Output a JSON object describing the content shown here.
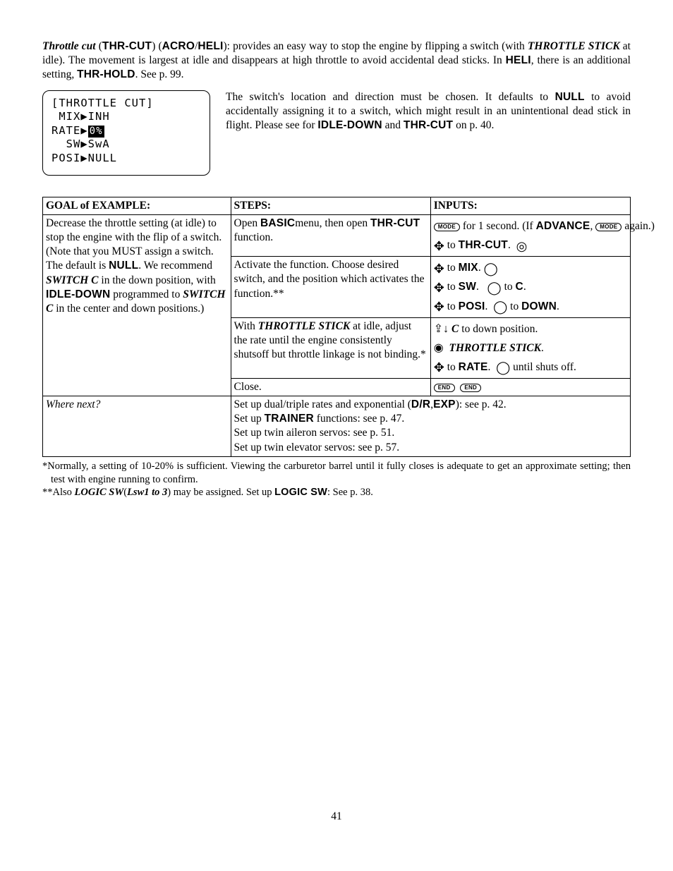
{
  "intro": {
    "t1": "Throttle cut",
    "t2": " (",
    "t3": "THR-CUT",
    "t4": ") (",
    "t5": "ACRO",
    "t6": "/",
    "t7": "HELI",
    "t8": "): provides an easy way to stop the engine by flipping a switch (with ",
    "t9": "THROTTLE STICK",
    "t10": " at idle). The movement is largest at idle and disappears at high throttle to avoid accidental dead sticks. In ",
    "t11": "HELI",
    "t12": ", there is an additional setting, ",
    "t13": "THR-HOLD",
    "t14": ". See p. 99."
  },
  "lcd": {
    "l1": "[THROTTLE CUT]",
    "l2": " MIX▶INH",
    "l3a": "RATE▶",
    "l3b": "0%",
    "l4": "  SW▶SwA",
    "l5": "POSI▶NULL"
  },
  "note": {
    "n1": "The switch's location and direction must be chosen. It defaults to ",
    "n2": "NULL",
    "n3": " to avoid accidentally assigning it to a switch, which might result in an unintentional dead stick in flight. Please see for ",
    "n4": "IDLE-DOWN",
    "n5": " and ",
    "n6": "THR-CUT",
    "n7": " on p. 40."
  },
  "headers": {
    "goal": "GOAL of EXAMPLE:",
    "steps": "STEPS:",
    "inputs": "INPUTS:"
  },
  "goal": {
    "g1": "Decrease the throttle setting (at idle) to stop the engine with the flip of a switch.(Note that you MUST assign a switch. The default is ",
    "g2": "NULL",
    "g3": ". We recommend ",
    "g4": "SWITCH C",
    "g5": " in the down position, with ",
    "g6": "IDLE-DOWN",
    "g7": " programmed to ",
    "g8": "SWITCH C",
    "g9": " in the center and down positions.)"
  },
  "steps": {
    "s1a": "Open ",
    "s1b": "BASIC",
    "s1c": "menu, then open ",
    "s1d": "THR-CUT",
    "s1e": " function.",
    "s2": "Activate the function. Choose desired switch, and the position which activates the function.**",
    "s3a": "With ",
    "s3b": "THROTTLE STICK",
    "s3c": " at idle, adjust the rate until the engine consistently shutsoff but throttle linkage is not binding.*",
    "s4": "Close."
  },
  "inputs": {
    "i1a": " for 1 second. (If ",
    "i1b": "ADVANCE",
    "i1c": ", ",
    "i1d": " again.)",
    "to": " to ",
    "thrcut": "THR-CUT",
    "mix": "MIX",
    "sw": "SW",
    "c": "C",
    "posi": "POSI",
    "down": "DOWN",
    "cdown1": " C",
    "cdown2": " to down position.",
    "thrstick": " THROTTLE STICK",
    "rate": "RATE",
    "until": " until shuts off.",
    "mode": "MODE",
    "end": "END"
  },
  "where": {
    "label": "Where next?",
    "w1a": "Set up dual/triple rates and exponential (",
    "w1b": "D/R",
    "w1c": ",",
    "w1d": "EXP",
    "w1e": "): see p. 42.",
    "w2a": "Set up ",
    "w2b": "TRAINER",
    "w2c": " functions: see p. 47.",
    "w3": "Set up twin aileron servos: see p. 51.",
    "w4": "Set up twin elevator servos: see p. 57."
  },
  "foot": {
    "f1": "*Normally, a setting of 10-20% is sufficient. Viewing the carburetor barrel until it fully closes is adequate to get an approximate setting; then test with engine running to confirm.",
    "f2a": "**Also ",
    "f2b": "LOGIC SW",
    "f2c": "(",
    "f2d": "Lsw1 to 3",
    "f2e": ") may be assigned. Set up ",
    "f2f": "LOGIC SW",
    "f2g": ": See p. 38."
  },
  "page": "41"
}
